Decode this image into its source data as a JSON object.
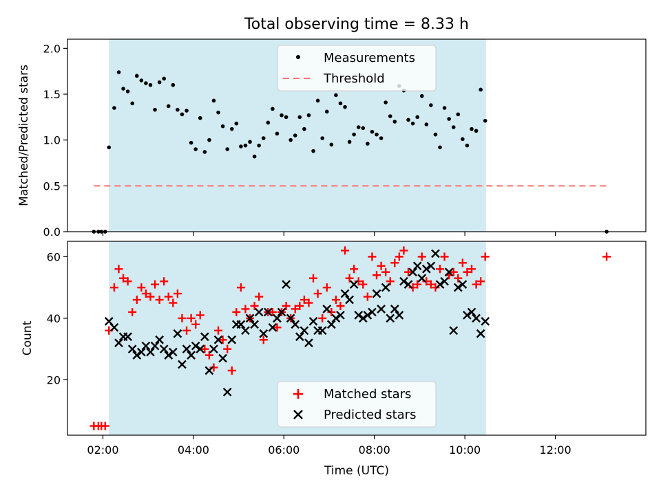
{
  "chart_data": [
    {
      "type": "scatter",
      "title": "Total observing time = 8.33 h",
      "xlabel": "",
      "ylabel": "Matched/Predicted stars",
      "ylim": [
        0,
        2.1
      ],
      "xlim": [
        "01:13",
        "14:00"
      ],
      "yticks": [
        "0.0",
        "0.5",
        "1.0",
        "1.5",
        "2.0"
      ],
      "shaded_span": [
        "02:08",
        "10:28"
      ],
      "shade_color": "#add8e6",
      "legend_position": "upper center",
      "series": [
        {
          "name": "Measurements",
          "marker": "dot",
          "color": "#000000",
          "x": [
            "01:48",
            "01:54",
            "01:58",
            "02:03",
            "02:08",
            "02:15",
            "02:21",
            "02:27",
            "02:33",
            "02:39",
            "02:45",
            "02:51",
            "02:57",
            "03:03",
            "03:09",
            "03:15",
            "03:21",
            "03:27",
            "03:33",
            "03:39",
            "03:45",
            "03:51",
            "03:57",
            "04:03",
            "04:09",
            "04:15",
            "04:21",
            "04:27",
            "04:33",
            "04:39",
            "04:45",
            "04:51",
            "04:57",
            "05:03",
            "05:09",
            "05:15",
            "05:21",
            "05:27",
            "05:33",
            "05:39",
            "05:45",
            "05:51",
            "05:57",
            "06:03",
            "06:09",
            "06:15",
            "06:21",
            "06:27",
            "06:33",
            "06:39",
            "06:45",
            "06:51",
            "06:57",
            "07:03",
            "07:09",
            "07:15",
            "07:21",
            "07:27",
            "07:33",
            "07:39",
            "07:45",
            "07:51",
            "07:57",
            "08:03",
            "08:09",
            "08:15",
            "08:21",
            "08:27",
            "08:33",
            "08:39",
            "08:45",
            "08:51",
            "08:57",
            "09:03",
            "09:09",
            "09:15",
            "09:21",
            "09:27",
            "09:33",
            "09:39",
            "09:45",
            "09:51",
            "09:57",
            "10:03",
            "10:09",
            "10:15",
            "10:21",
            "10:27",
            "13:08"
          ],
          "y": [
            0.0,
            0.0,
            0.0,
            0.0,
            0.92,
            1.35,
            1.74,
            1.56,
            1.53,
            1.4,
            1.7,
            1.65,
            1.62,
            1.6,
            1.33,
            1.63,
            1.67,
            1.37,
            1.6,
            1.33,
            1.28,
            1.32,
            0.97,
            0.9,
            1.24,
            0.87,
            1.0,
            1.43,
            1.3,
            1.15,
            0.9,
            1.12,
            1.18,
            0.93,
            0.94,
            0.98,
            0.82,
            0.94,
            1.02,
            1.19,
            1.34,
            1.07,
            1.27,
            1.25,
            1.0,
            1.05,
            1.25,
            1.12,
            1.27,
            0.88,
            1.43,
            1.02,
            1.31,
            0.95,
            1.49,
            1.4,
            1.36,
            0.98,
            1.06,
            1.14,
            1.13,
            0.96,
            1.09,
            1.06,
            1.02,
            1.41,
            1.26,
            1.2,
            1.59,
            1.54,
            1.22,
            1.18,
            1.25,
            1.48,
            1.17,
            1.38,
            1.06,
            0.92,
            1.35,
            1.23,
            1.14,
            1.28,
            1.01,
            0.94,
            1.12,
            1.1,
            1.55,
            1.21,
            0.0
          ]
        },
        {
          "name": "Threshold",
          "line_style": "dashed",
          "color": "#ff6f6f",
          "x": [
            "01:48",
            "13:08"
          ],
          "y": [
            0.5,
            0.5
          ]
        }
      ]
    },
    {
      "type": "scatter",
      "title": "",
      "xlabel": "Time (UTC)",
      "ylabel": "Count",
      "ylim": [
        2,
        65
      ],
      "xlim": [
        "01:13",
        "14:00"
      ],
      "xticks": [
        "02:00",
        "04:00",
        "06:00",
        "08:00",
        "10:00",
        "12:00"
      ],
      "yticks": [
        "20",
        "40",
        "60"
      ],
      "shaded_span": [
        "02:08",
        "10:28"
      ],
      "shade_color": "#add8e6",
      "legend_position": "lower center",
      "series": [
        {
          "name": "Matched stars",
          "marker": "plus",
          "color": "#ff0000",
          "x": [
            "01:48",
            "01:54",
            "01:58",
            "02:03",
            "02:08",
            "02:15",
            "02:21",
            "02:27",
            "02:33",
            "02:39",
            "02:45",
            "02:51",
            "02:57",
            "03:03",
            "03:09",
            "03:15",
            "03:21",
            "03:27",
            "03:33",
            "03:39",
            "03:45",
            "03:51",
            "03:57",
            "04:03",
            "04:09",
            "04:15",
            "04:21",
            "04:27",
            "04:33",
            "04:39",
            "04:45",
            "04:51",
            "04:57",
            "05:03",
            "05:09",
            "05:15",
            "05:21",
            "05:27",
            "05:33",
            "05:39",
            "05:45",
            "05:51",
            "05:57",
            "06:03",
            "06:09",
            "06:15",
            "06:21",
            "06:27",
            "06:33",
            "06:39",
            "06:45",
            "06:51",
            "06:57",
            "07:03",
            "07:09",
            "07:15",
            "07:21",
            "07:27",
            "07:33",
            "07:39",
            "07:45",
            "07:51",
            "07:57",
            "08:03",
            "08:09",
            "08:15",
            "08:21",
            "08:27",
            "08:33",
            "08:39",
            "08:45",
            "08:51",
            "08:57",
            "09:03",
            "09:09",
            "09:15",
            "09:21",
            "09:27",
            "09:33",
            "09:39",
            "09:45",
            "09:51",
            "09:57",
            "10:03",
            "10:09",
            "10:15",
            "10:21",
            "10:27",
            "13:08"
          ],
          "y": [
            5,
            5,
            5,
            5,
            36,
            50,
            56,
            53,
            52,
            42,
            46,
            50,
            48,
            47,
            51,
            46,
            52,
            47,
            45,
            48,
            40,
            36,
            40,
            38,
            41,
            30,
            28,
            24,
            36,
            33,
            30,
            23,
            42,
            50,
            43,
            40,
            44,
            47,
            33,
            42,
            42,
            37,
            42,
            44,
            40,
            43,
            44,
            46,
            45,
            53,
            48,
            40,
            50,
            42,
            46,
            44,
            62,
            53,
            56,
            52,
            51,
            47,
            60,
            54,
            57,
            55,
            52,
            58,
            60,
            62,
            55,
            50,
            51,
            60,
            52,
            51,
            50,
            56,
            60,
            54,
            55,
            53,
            58,
            55,
            56,
            51,
            52,
            60,
            60
          ]
        },
        {
          "name": "Predicted stars",
          "marker": "x",
          "color": "#000000",
          "x": [
            "02:08",
            "02:15",
            "02:21",
            "02:27",
            "02:33",
            "02:39",
            "02:45",
            "02:51",
            "02:57",
            "03:03",
            "03:09",
            "03:15",
            "03:21",
            "03:27",
            "03:33",
            "03:39",
            "03:45",
            "03:51",
            "03:57",
            "04:03",
            "04:09",
            "04:15",
            "04:21",
            "04:27",
            "04:33",
            "04:39",
            "04:45",
            "04:51",
            "04:57",
            "05:03",
            "05:09",
            "05:15",
            "05:21",
            "05:27",
            "05:33",
            "05:39",
            "05:45",
            "05:51",
            "05:57",
            "06:03",
            "06:09",
            "06:15",
            "06:21",
            "06:27",
            "06:33",
            "06:39",
            "06:45",
            "06:51",
            "06:57",
            "07:03",
            "07:09",
            "07:15",
            "07:21",
            "07:27",
            "07:33",
            "07:39",
            "07:45",
            "07:51",
            "07:57",
            "08:03",
            "08:09",
            "08:15",
            "08:21",
            "08:27",
            "08:33",
            "08:39",
            "08:45",
            "08:51",
            "08:57",
            "09:03",
            "09:09",
            "09:15",
            "09:21",
            "09:27",
            "09:33",
            "09:39",
            "09:45",
            "09:51",
            "09:57",
            "10:03",
            "10:09",
            "10:15",
            "10:21",
            "10:27"
          ],
          "y": [
            39,
            37,
            32,
            34,
            34,
            30,
            28,
            29,
            31,
            29,
            31,
            33,
            30,
            28,
            29,
            35,
            25,
            30,
            28,
            31,
            30,
            34,
            23,
            30,
            33,
            27,
            16,
            33,
            38,
            38,
            36,
            40,
            38,
            42,
            35,
            42,
            37,
            40,
            42,
            51,
            40,
            38,
            34,
            36,
            32,
            39,
            36,
            36,
            43,
            38,
            40,
            41,
            48,
            46,
            51,
            41,
            40,
            41,
            42,
            48,
            43,
            50,
            40,
            43,
            41,
            52,
            51,
            55,
            57,
            53,
            56,
            57,
            61,
            51,
            52,
            55,
            36,
            50,
            51,
            41,
            42,
            40,
            35,
            39
          ]
        }
      ]
    }
  ]
}
